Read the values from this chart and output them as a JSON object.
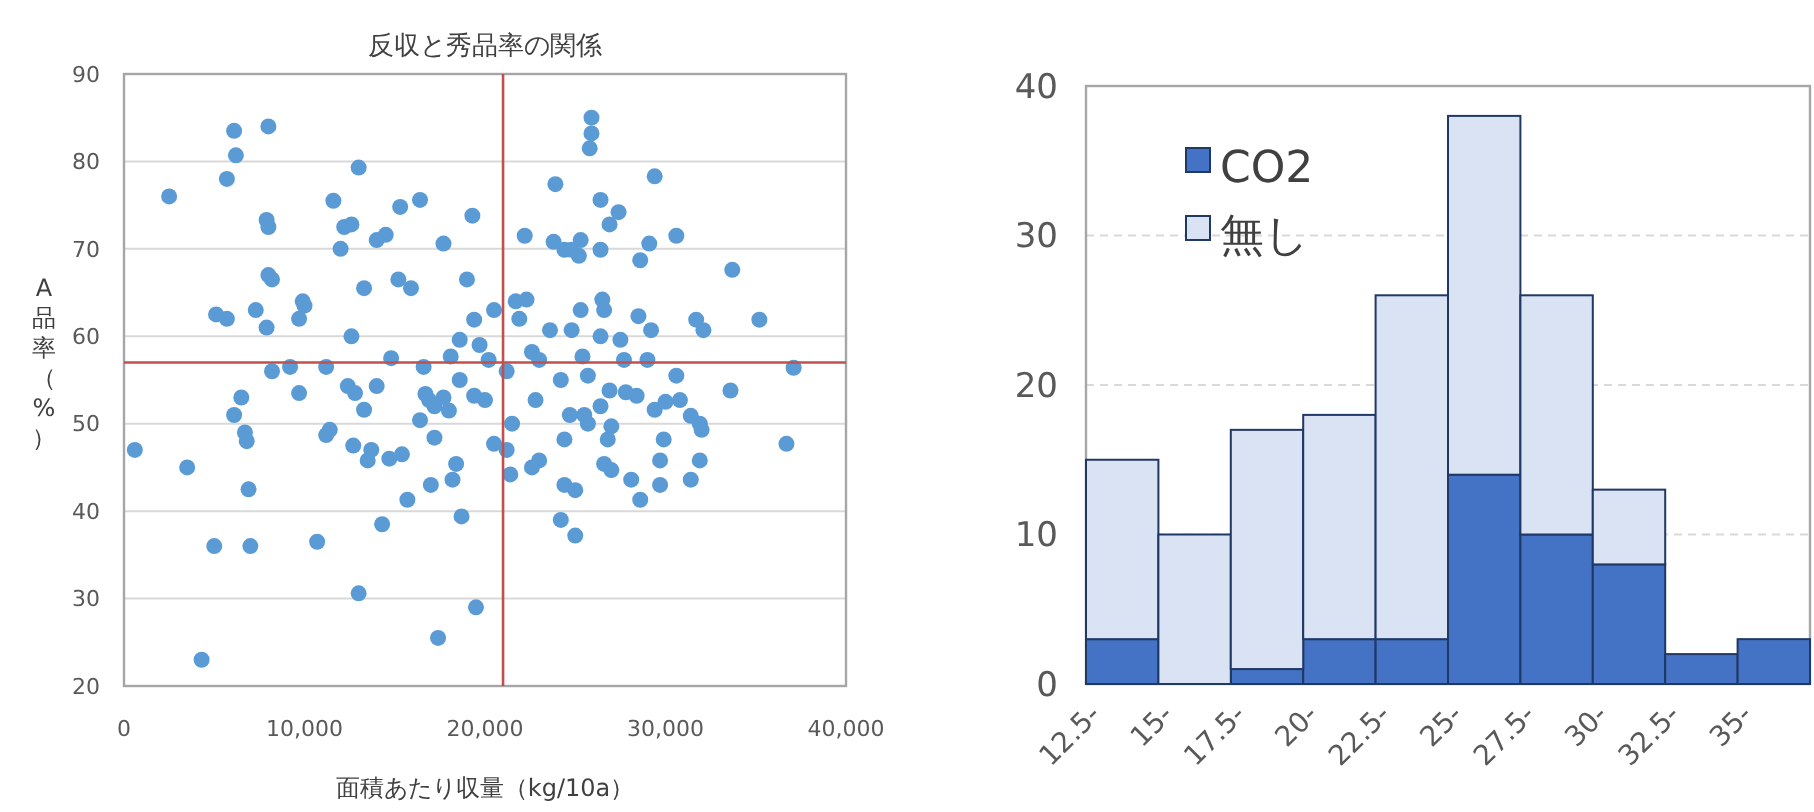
{
  "chart_data": [
    {
      "type": "scatter",
      "title": "反収と秀品率の関係",
      "xlabel": "面積あたり収量（kg/10a）",
      "ylabel": "A品率（%）",
      "marker": "circle",
      "grid": "y",
      "xlim": [
        0,
        40000
      ],
      "xticks": [
        0,
        {
          "value": 10000,
          "label": "10,000"
        },
        {
          "value": 20000,
          "label": "20,000"
        },
        {
          "value": 30000,
          "label": "30,000"
        },
        {
          "value": 40000,
          "label": "40,000"
        }
      ],
      "ylim": [
        20,
        90
      ],
      "yticks": [
        20,
        30,
        40,
        50,
        60,
        70,
        80,
        90
      ],
      "ref_lines": [
        {
          "axis": "x",
          "value": 21000,
          "color": "#c0504d"
        },
        {
          "axis": "y",
          "value": 57,
          "color": "#c0504d"
        }
      ],
      "series": [
        {
          "color": "#5b9bd5",
          "x": [
            600,
            2500,
            3500,
            4300,
            5000,
            5100,
            5700,
            5700,
            6100,
            6200,
            6100,
            6500,
            6700,
            6800,
            6900,
            7000,
            7900,
            8000,
            8000,
            8200,
            8200,
            7300,
            7900,
            8000,
            9200,
            9700,
            9700,
            9900,
            10000,
            10700,
            11200,
            11400,
            11200,
            11600,
            12000,
            12200,
            12600,
            12400,
            12800,
            13000,
            12600,
            12700,
            13000,
            13300,
            13300,
            13500,
            13700,
            14000,
            14000,
            14300,
            14700,
            14500,
            14800,
            15200,
            15300,
            15400,
            15700,
            15900,
            16400,
            16700,
            16600,
            16900,
            17000,
            17200,
            17200,
            17400,
            17700,
            17700,
            18000,
            18200,
            18400,
            18100,
            18600,
            18600,
            19300,
            19500,
            18700,
            19400,
            19000,
            19700,
            20200,
            20500,
            20500,
            19400,
            20000,
            16400,
            21200,
            21200,
            21400,
            21500,
            21700,
            21900,
            22200,
            22600,
            22800,
            22600,
            23000,
            23600,
            23900,
            23800,
            24200,
            24400,
            24400,
            24700,
            24400,
            24800,
            25200,
            25300,
            25000,
            25000,
            25400,
            25500,
            25700,
            25700,
            25900,
            25900,
            25800,
            26400,
            26400,
            26500,
            26600,
            26400,
            26600,
            26800,
            27000,
            27000,
            26900,
            27400,
            27500,
            27700,
            27800,
            28400,
            28100,
            28600,
            28500,
            29100,
            29000,
            29200,
            29400,
            29700,
            29700,
            29900,
            30000,
            30600,
            30600,
            30800,
            31400,
            31900,
            31400,
            31900,
            31700,
            32100,
            32000,
            33600,
            33700,
            35200,
            36700,
            37100,
            29400,
            26900,
            25300,
            24800,
            26400,
            22300,
            23000,
            24200,
            28600
          ],
          "values": [
            47,
            76,
            45,
            23,
            36,
            62.5,
            62,
            78,
            83.5,
            80.7,
            51,
            53,
            49,
            48,
            42.5,
            36,
            73.3,
            72.5,
            67,
            66.5,
            56,
            63,
            61,
            84,
            56.5,
            53.5,
            62,
            64,
            63.5,
            36.5,
            48.7,
            49.3,
            56.5,
            75.5,
            70,
            72.5,
            60,
            54.3,
            53.5,
            79.3,
            72.8,
            47.5,
            30.6,
            51.6,
            65.5,
            45.8,
            47,
            54.3,
            71,
            38.5,
            46,
            71.6,
            57.5,
            66.5,
            74.8,
            46.5,
            41.3,
            65.5,
            75.6,
            53.4,
            56.5,
            52.7,
            43,
            48.4,
            52,
            25.5,
            53,
            70.6,
            51.5,
            43.6,
            45.4,
            57.7,
            55,
            59.6,
            73.8,
            29,
            39.4,
            61.9,
            66.5,
            59,
            57.3,
            47.7,
            63,
            53.2,
            52.7,
            50.4,
            47,
            56,
            44.2,
            50,
            64,
            62,
            71.5,
            58.2,
            52.7,
            45,
            45.8,
            60.7,
            77.4,
            70.8,
            55,
            48.2,
            43,
            51,
            69.9,
            69.9,
            69.2,
            71,
            42.4,
            37.2,
            57.7,
            51,
            50,
            55.5,
            85,
            83.2,
            81.5,
            75.6,
            69.9,
            64.2,
            63,
            52,
            45.4,
            48.2,
            49.7,
            44.7,
            53.8,
            74.2,
            59.6,
            57.3,
            53.6,
            53.2,
            43.6,
            68.7,
            62.3,
            70.6,
            57.3,
            60.7,
            51.6,
            45.8,
            43,
            48.2,
            52.5,
            71.5,
            55.5,
            52.7,
            50.9,
            50,
            43.6,
            45.8,
            61.9,
            60.7,
            49.3,
            53.8,
            67.6,
            61.9,
            47.7,
            56.4,
            78.3,
            72.8,
            63,
            60.7,
            60,
            64.2,
            57.3,
            39,
            41.3
          ]
        }
      ]
    },
    {
      "type": "bar",
      "stacked": true,
      "legend": "top left",
      "grid": "y",
      "ylim": [
        0,
        40
      ],
      "yticks": [
        0,
        10,
        20,
        30,
        40
      ],
      "categories": [
        "12.5-",
        "15-",
        "17.5-",
        "20-",
        "22.5-",
        "25-",
        "27.5-",
        "30-",
        "32.5-",
        "35-"
      ],
      "series": [
        {
          "name": "CO2",
          "color": "#4472c4",
          "values": [
            3,
            0,
            1,
            3,
            3,
            14,
            10,
            8,
            2,
            3
          ]
        },
        {
          "name": "無し",
          "color": "#dae3f3",
          "values": [
            12,
            10,
            16,
            15,
            23,
            24,
            16,
            5,
            0,
            0
          ]
        }
      ]
    }
  ]
}
